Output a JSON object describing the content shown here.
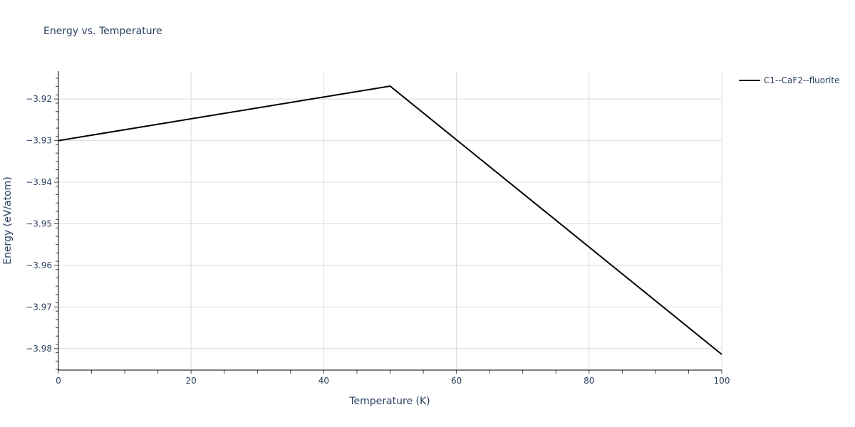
{
  "chart": {
    "title": "Energy vs. Temperature",
    "xlabel": "Temperature (K)",
    "ylabel": "Energy (eV/atom)",
    "legend_label": "C1--CaF2--fluorite",
    "line_color": "#000000"
  },
  "chart_data": {
    "type": "line",
    "title": "Energy vs. Temperature",
    "xlabel": "Temperature (K)",
    "ylabel": "Energy (eV/atom)",
    "xlim": [
      0,
      100
    ],
    "ylim": [
      -3.985,
      -3.9133
    ],
    "x_ticks": [
      0,
      20,
      40,
      60,
      80,
      100
    ],
    "y_ticks": [
      -3.98,
      -3.97,
      -3.96,
      -3.95,
      -3.94,
      -3.93,
      -3.92
    ],
    "y_tick_labels": [
      "−3.98",
      "−3.97",
      "−3.96",
      "−3.95",
      "−3.94",
      "−3.93",
      "−3.92"
    ],
    "grid": true,
    "legend_position": "top-right outside",
    "series": [
      {
        "name": "C1--CaF2--fluorite",
        "x": [
          0,
          50,
          100
        ],
        "y": [
          -3.93,
          -3.9169,
          -3.9814
        ]
      }
    ]
  }
}
